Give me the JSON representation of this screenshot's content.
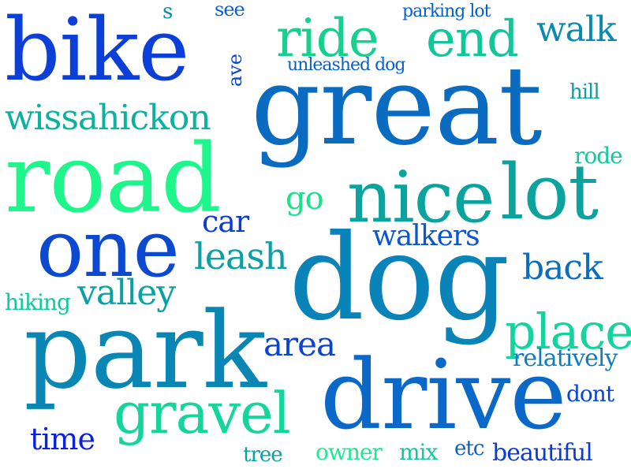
{
  "words": [
    {
      "text": "bike",
      "color": "#0b3fd8"
    },
    {
      "text": "great",
      "color": "#0a6cc0"
    },
    {
      "text": "road",
      "color": "#1ef58a"
    },
    {
      "text": "dog",
      "color": "#0a84b8"
    },
    {
      "text": "park",
      "color": "#0a86b5"
    },
    {
      "text": "one",
      "color": "#0b4ad0"
    },
    {
      "text": "drive",
      "color": "#0a68c8"
    },
    {
      "text": "lot",
      "color": "#0aa39e"
    },
    {
      "text": "nice",
      "color": "#0aa39e"
    },
    {
      "text": "ride",
      "color": "#16d08e"
    },
    {
      "text": "end",
      "color": "#10c79a"
    },
    {
      "text": "gravel",
      "color": "#14d69a"
    },
    {
      "text": "place",
      "color": "#12d49c"
    },
    {
      "text": "wissahickon",
      "color": "#0bb2a0"
    },
    {
      "text": "leash",
      "color": "#0aa0a6"
    },
    {
      "text": "valley",
      "color": "#0aa0a6"
    },
    {
      "text": "walk",
      "color": "#0a8ab0"
    },
    {
      "text": "back",
      "color": "#0a6ec0"
    },
    {
      "text": "walkers",
      "color": "#0a56cc"
    },
    {
      "text": "area",
      "color": "#0a44d2"
    },
    {
      "text": "car",
      "color": "#0b3ad6"
    },
    {
      "text": "go",
      "color": "#1ee08a"
    },
    {
      "text": "time",
      "color": "#0a22e0"
    },
    {
      "text": "relatively",
      "color": "#0a7ec0"
    },
    {
      "text": "dont",
      "color": "#0a44d2"
    },
    {
      "text": "beautiful",
      "color": "#0a3ad8"
    },
    {
      "text": "hill",
      "color": "#0aa0a6"
    },
    {
      "text": "rode",
      "color": "#12c89a"
    },
    {
      "text": "hiking",
      "color": "#10c8a0"
    },
    {
      "text": "owner",
      "color": "#1ee890"
    },
    {
      "text": "mix",
      "color": "#12c89a"
    },
    {
      "text": "etc",
      "color": "#0a60c8"
    },
    {
      "text": "tree",
      "color": "#0aa0a6"
    },
    {
      "text": "parking lot",
      "color": "#0a60c8"
    },
    {
      "text": "unleashed dog",
      "color": "#0a60c8"
    },
    {
      "text": "see",
      "color": "#0a60c8"
    },
    {
      "text": "s",
      "color": "#0a8ab0"
    },
    {
      "text": "ave",
      "color": "#0a44d2"
    }
  ]
}
